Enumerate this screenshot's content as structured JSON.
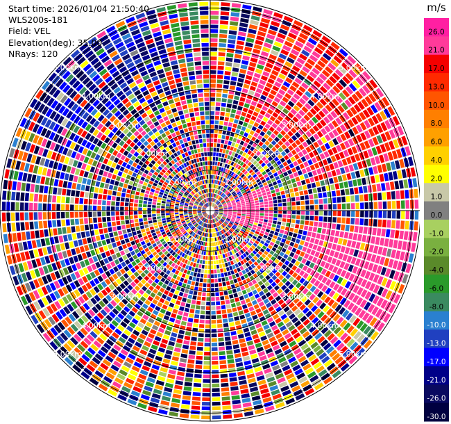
{
  "header": {
    "start_time": "Start time: 2026/01/04 21:50:40",
    "instrument": "WLS200s-181",
    "field": "Field: VEL",
    "elevation": "Elevation(deg): 35.00",
    "nrays": "NRays: 120"
  },
  "chart_data": {
    "type": "heatmap",
    "projection": "polar-ppi",
    "nrays": 120,
    "range_rings_km": [
      1,
      2,
      3,
      4,
      5
    ],
    "range_ring_labels": [
      "1.00km",
      "2.00km",
      "3.00km",
      "4.00km",
      "5.00km"
    ],
    "max_range_km": 5.2,
    "colorbar": {
      "unit": "m/s",
      "ticks": [
        "26.0",
        "21.0",
        "17.0",
        "13.0",
        "10.0",
        "8.0",
        "6.0",
        "4.0",
        "2.0",
        "1.0",
        "0.0",
        "-1.0",
        "-2.0",
        "-4.0",
        "-6.0",
        "-8.0",
        "-10.0",
        "-13.0",
        "-17.0",
        "-21.0",
        "-26.0",
        "-30.0"
      ],
      "colors": [
        "#ff1fa2",
        "#ff3a9a",
        "#f50000",
        "#ff2a00",
        "#ff5500",
        "#ff7f00",
        "#ffa000",
        "#ffd000",
        "#ffff00",
        "#c8c8a8",
        "#808080",
        "#a8d060",
        "#7ab040",
        "#5a8a2a",
        "#2a9a2a",
        "#3a8a60",
        "#2a80d0",
        "#2040c0",
        "#0000ff",
        "#000088",
        "#0a0a60",
        "#000040"
      ]
    },
    "dominant_features": [
      {
        "sector": "north-east",
        "value_range": [
          13,
          26
        ],
        "description_visible": false
      },
      {
        "sector": "east",
        "value_range": [
          21,
          26
        ]
      },
      {
        "sector": "north-west",
        "value_range": [
          -26,
          -10
        ]
      },
      {
        "sector": "south",
        "value_range": [
          2,
          6
        ]
      }
    ]
  }
}
